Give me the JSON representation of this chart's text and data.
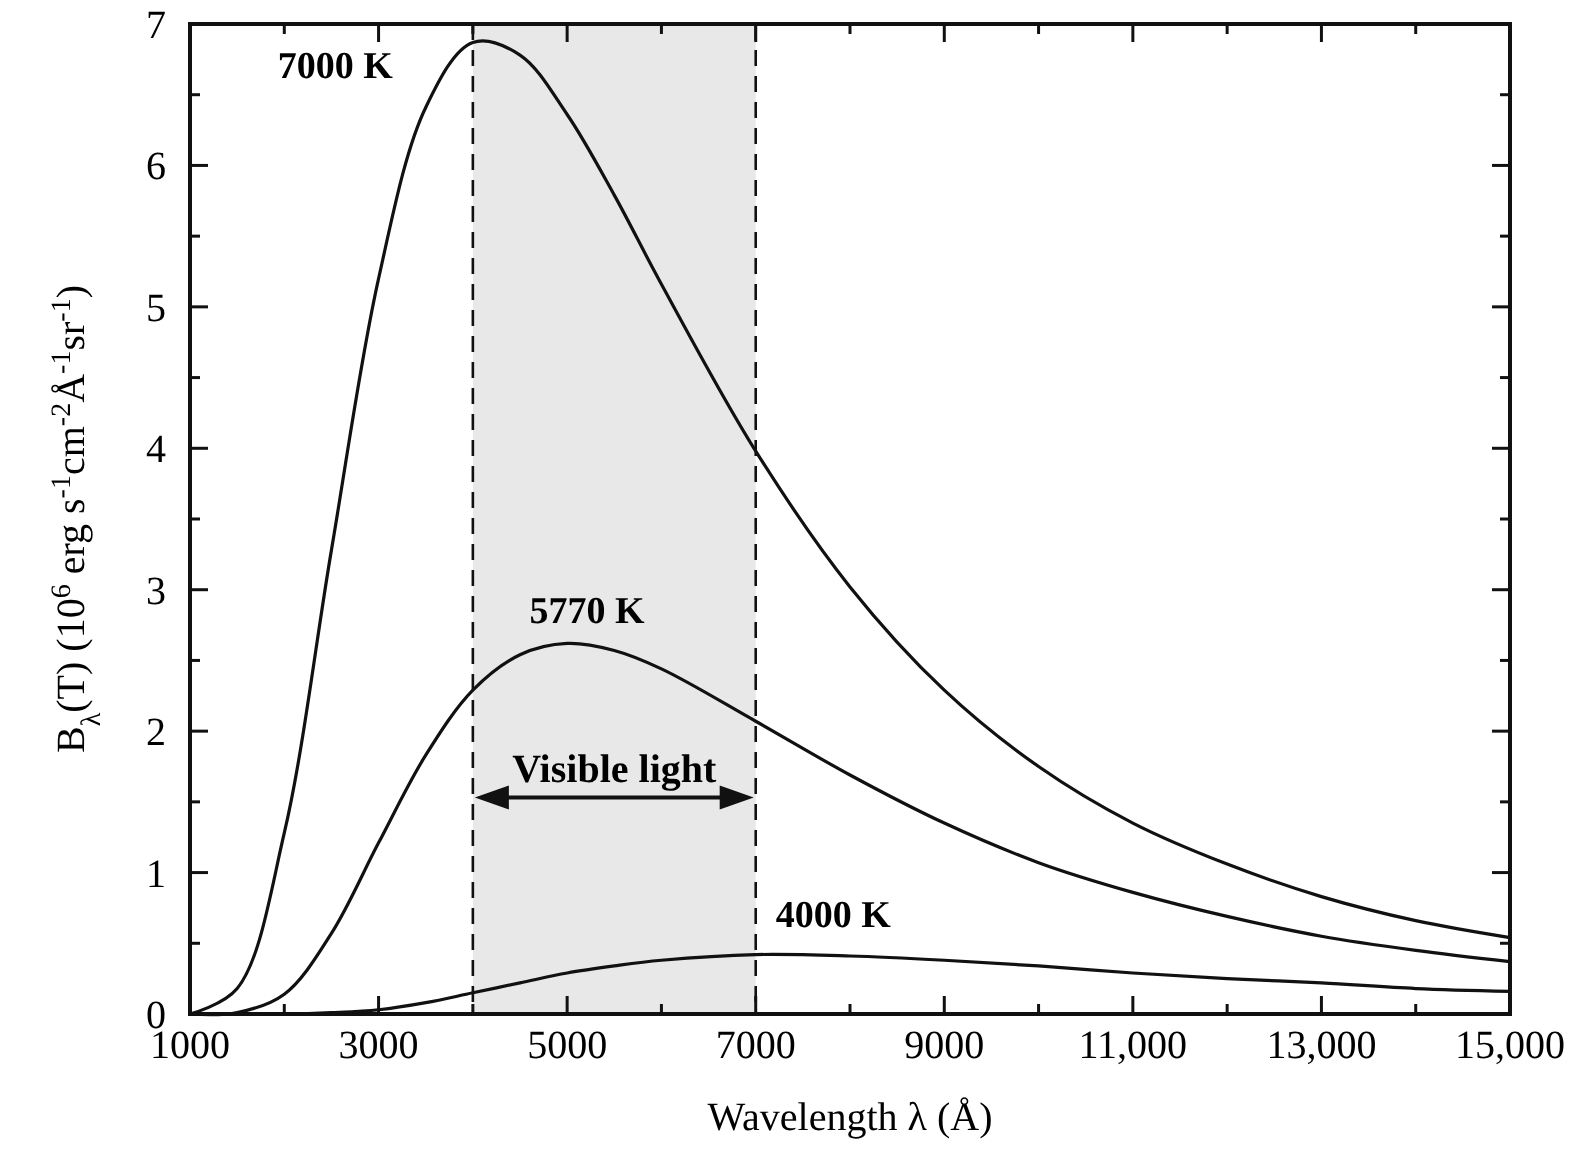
{
  "chart_data": {
    "type": "line",
    "xlabel": "Wavelength λ (Å)",
    "ylabel": "B$_{λ}$(T) (10$^{6}$ erg s$^{-1}$cm$^{-2}$Å$^{-1}$sr$^{-1}$)",
    "x": [
      1000,
      1500,
      2000,
      2500,
      3000,
      3500,
      4000,
      4500,
      5000,
      5500,
      6000,
      7000,
      8000,
      9000,
      10000,
      11000,
      12000,
      13000,
      14000,
      15000
    ],
    "series": [
      {
        "name": "7000 K",
        "color": "#111111",
        "values": [
          0,
          0.18,
          1.28,
          3.28,
          5.2,
          6.41,
          6.87,
          6.78,
          6.36,
          5.79,
          5.16,
          3.98,
          3.02,
          2.29,
          1.75,
          1.35,
          1.06,
          0.83,
          0.66,
          0.54
        ]
      },
      {
        "name": "5770 K",
        "color": "#111111",
        "values": [
          0,
          0.01,
          0.14,
          0.57,
          1.21,
          1.83,
          2.29,
          2.54,
          2.62,
          2.57,
          2.44,
          2.07,
          1.69,
          1.35,
          1.07,
          0.86,
          0.69,
          0.55,
          0.45,
          0.37
        ]
      },
      {
        "name": "4000 K",
        "color": "#111111",
        "values": [
          0,
          0,
          0,
          0.01,
          0.03,
          0.08,
          0.15,
          0.22,
          0.29,
          0.34,
          0.38,
          0.42,
          0.41,
          0.38,
          0.34,
          0.29,
          0.25,
          0.22,
          0.18,
          0.16
        ]
      }
    ],
    "xlim": [
      1000,
      15000
    ],
    "xticks": [
      1000,
      {
        "value": 2000,
        "label": null
      },
      3000,
      {
        "value": 4000,
        "label": null
      },
      5000,
      {
        "value": 6000,
        "label": null
      },
      7000,
      {
        "value": 8000,
        "label": null
      },
      9000,
      {
        "value": 10000,
        "label": null
      },
      {
        "value": 11000,
        "label": "11,000"
      },
      {
        "value": 12000,
        "label": null
      },
      {
        "value": 13000,
        "label": "13,000"
      },
      {
        "value": 14000,
        "label": null
      },
      {
        "value": 15000,
        "label": "15,000"
      }
    ],
    "ylim": [
      0,
      7
    ],
    "yticks": [
      0,
      {
        "value": 0.5,
        "label": null
      },
      1,
      {
        "value": 1.5,
        "label": null
      },
      2,
      {
        "value": 2.5,
        "label": null
      },
      3,
      {
        "value": 3.5,
        "label": null
      },
      4,
      {
        "value": 4.5,
        "label": null
      },
      5,
      {
        "value": 5.5,
        "label": null
      },
      6,
      {
        "value": 6.5,
        "label": null
      },
      7
    ],
    "bands": [
      {
        "axis": "x",
        "from": 4000,
        "to": 7000,
        "label": "Visible light",
        "color": "#d9d9d9"
      }
    ],
    "ref_lines": [
      {
        "axis": "x",
        "value": 4000,
        "line_style": "dashed"
      },
      {
        "axis": "x",
        "value": 7000,
        "line_style": "dashed"
      }
    ],
    "grid": false,
    "legend": false,
    "line_style": "solid"
  }
}
